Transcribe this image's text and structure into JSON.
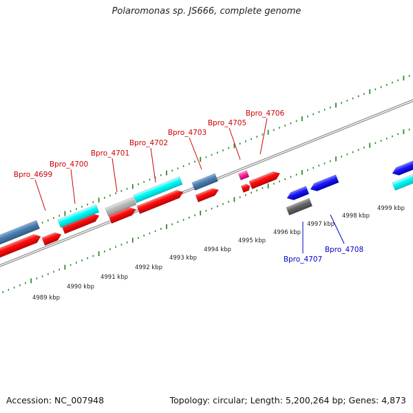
{
  "title": "Polaromonas sp. JS666, complete genome",
  "footer": {
    "accession": "Accession: NC_007948",
    "summary": "Topology: circular; Length: 5,200,264 bp; Genes: 4,873"
  },
  "colors": {
    "forward_label": "#cc0000",
    "reverse_label": "#0000cc",
    "backbone": "#888888",
    "tick": "#2a8a2a",
    "red": "#ff0000",
    "cyan": "#00ffff",
    "steel": "#4a7fb0",
    "gray": "#bbbbbb",
    "blue": "#1a1aff",
    "darkgray": "#666666",
    "magenta": "#ff2aa0"
  },
  "scale_labels": [
    "4989 kbp",
    "4990 kbp",
    "4991 kbp",
    "4992 kbp",
    "4993 kbp",
    "4994 kbp",
    "4995 kbp",
    "4996 kbp",
    "4997 kbp",
    "4998 kbp",
    "4999 kbp"
  ],
  "forward_gene_labels": [
    "Bpro_4699",
    "Bpro_4700",
    "Bpro_4701",
    "Bpro_4702",
    "Bpro_4703",
    "Bpro_4705",
    "Bpro_4706"
  ],
  "reverse_gene_labels": [
    "Bpro_4707",
    "Bpro_4708"
  ]
}
